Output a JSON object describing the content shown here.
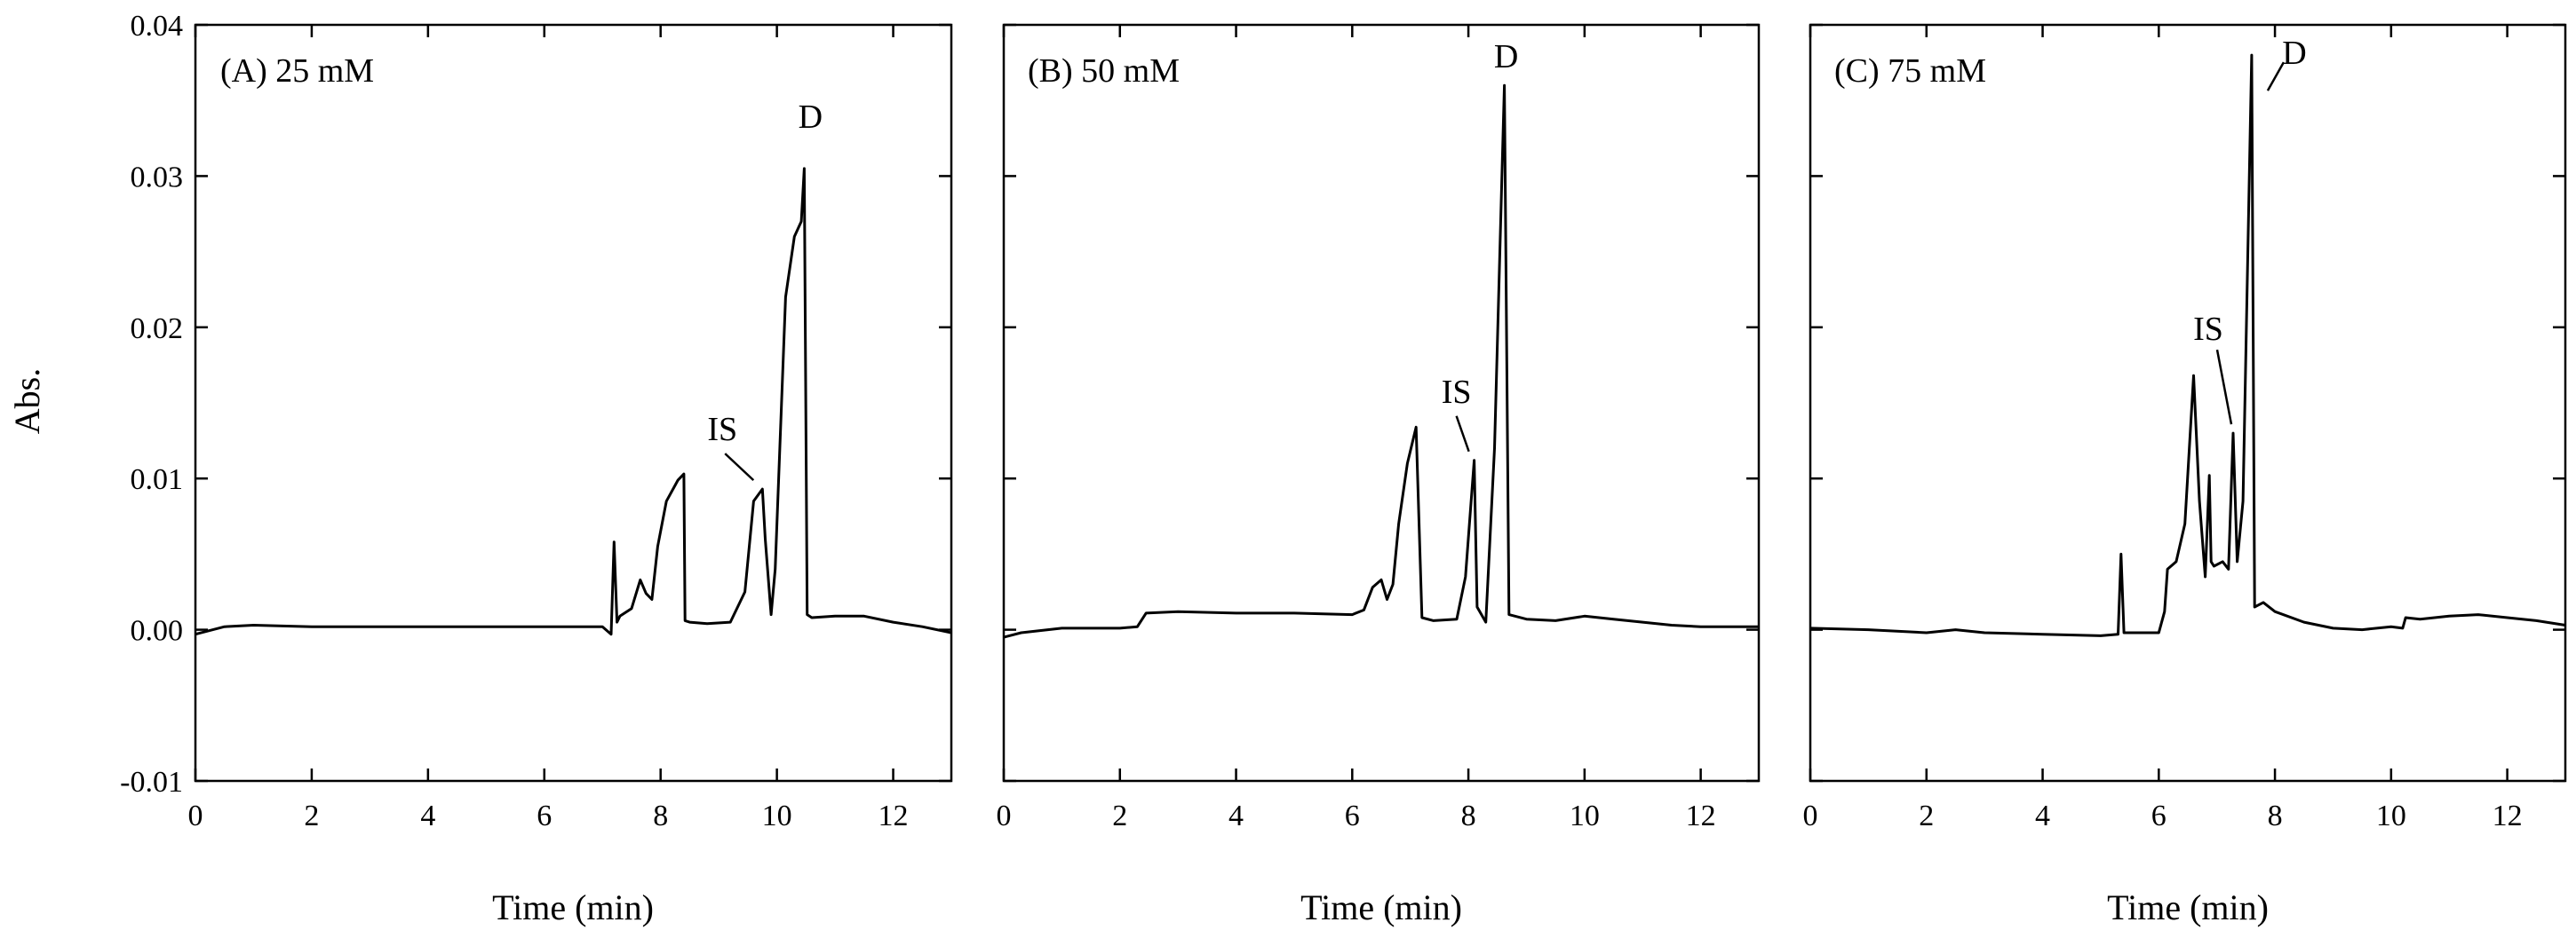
{
  "chart_data": [
    {
      "type": "line",
      "panel_label": "(A) 25 mM",
      "xlabel": "Time (min)",
      "ylabel": "Abs.",
      "xlim": [
        0,
        13
      ],
      "ylim": [
        -0.01,
        0.04
      ],
      "xticks": [
        0,
        2,
        4,
        6,
        8,
        10,
        12
      ],
      "yticks": [
        -0.01,
        0.0,
        0.01,
        0.02,
        0.03,
        0.04
      ],
      "ytick_labels": [
        "-0.01",
        "0.00",
        "0.01",
        "0.02",
        "0.03",
        "0.04"
      ],
      "series": [
        {
          "x": [
            0,
            0.5,
            1,
            2,
            3,
            4,
            5,
            6,
            7.0,
            7.15,
            7.2,
            7.25,
            7.3,
            7.5,
            7.65,
            7.75,
            7.85,
            7.95,
            8.1,
            8.3,
            8.4,
            8.42,
            8.5,
            8.8,
            9.2,
            9.45,
            9.6,
            9.75,
            9.8,
            9.9,
            9.97,
            10.05,
            10.15,
            10.3,
            10.42,
            10.47,
            10.52,
            10.6,
            11.0,
            11.5,
            12.0,
            12.5,
            13.0
          ],
          "y": [
            -0.0003,
            0.0002,
            0.0003,
            0.0002,
            0.0002,
            0.0002,
            0.0002,
            0.0002,
            0.0002,
            -0.0003,
            0.0058,
            0.0005,
            0.0009,
            0.0014,
            0.0033,
            0.0024,
            0.002,
            0.0055,
            0.0085,
            0.0099,
            0.0103,
            0.0006,
            0.0005,
            0.0004,
            0.0005,
            0.0025,
            0.0085,
            0.0093,
            0.006,
            0.001,
            0.004,
            0.012,
            0.022,
            0.026,
            0.027,
            0.0305,
            0.001,
            0.0008,
            0.0009,
            0.0009,
            0.0005,
            0.0002,
            -0.0002
          ]
        }
      ],
      "annotations": [
        {
          "text": "IS",
          "x": 9.75,
          "y": 0.0093
        },
        {
          "text": "D",
          "x": 10.47,
          "y": 0.0305
        }
      ]
    },
    {
      "type": "line",
      "panel_label": "(B) 50 mM",
      "xlabel": "Time (min)",
      "ylabel": "",
      "xlim": [
        0,
        13
      ],
      "ylim": [
        -0.01,
        0.04
      ],
      "xticks": [
        0,
        2,
        4,
        6,
        8,
        10,
        12
      ],
      "yticks": [
        -0.01,
        0.0,
        0.01,
        0.02,
        0.03,
        0.04
      ],
      "series": [
        {
          "x": [
            0,
            0.3,
            1,
            2,
            2.3,
            2.45,
            3,
            4,
            5,
            6,
            6.2,
            6.35,
            6.5,
            6.6,
            6.7,
            6.8,
            6.95,
            7.1,
            7.2,
            7.4,
            7.8,
            7.95,
            8.1,
            8.15,
            8.3,
            8.45,
            8.62,
            8.7,
            9.0,
            9.5,
            10.0,
            10.5,
            11.0,
            11.5,
            12.0,
            12.5,
            13.0
          ],
          "y": [
            -0.0005,
            -0.0002,
            0.0001,
            0.0001,
            0.0002,
            0.0011,
            0.0012,
            0.0011,
            0.0011,
            0.001,
            0.0013,
            0.0028,
            0.0033,
            0.002,
            0.003,
            0.007,
            0.011,
            0.0134,
            0.0008,
            0.0006,
            0.0007,
            0.0035,
            0.0112,
            0.0015,
            0.0005,
            0.012,
            0.036,
            0.001,
            0.0007,
            0.0006,
            0.0009,
            0.0007,
            0.0005,
            0.0003,
            0.0002,
            0.0002,
            0.0002
          ]
        }
      ],
      "annotations": [
        {
          "text": "IS",
          "x": 8.1,
          "y": 0.0112
        },
        {
          "text": "D",
          "x": 8.62,
          "y": 0.036
        }
      ]
    },
    {
      "type": "line",
      "panel_label": "(C) 75 mM",
      "xlabel": "Time (min)",
      "ylabel": "",
      "xlim": [
        0,
        13
      ],
      "ylim": [
        -0.01,
        0.04
      ],
      "xticks": [
        0,
        2,
        4,
        6,
        8,
        10,
        12
      ],
      "yticks": [
        -0.01,
        0.0,
        0.01,
        0.02,
        0.03,
        0.04
      ],
      "series": [
        {
          "x": [
            0,
            1,
            2,
            2.5,
            3,
            4,
            5,
            5.3,
            5.35,
            5.4,
            6.0,
            6.1,
            6.15,
            6.3,
            6.45,
            6.6,
            6.7,
            6.8,
            6.87,
            6.9,
            6.95,
            7.1,
            7.2,
            7.28,
            7.35,
            7.45,
            7.6,
            7.65,
            7.8,
            8.0,
            8.5,
            9.0,
            9.5,
            10.0,
            10.2,
            10.25,
            10.5,
            11.0,
            11.5,
            12.0,
            12.5,
            13.0
          ],
          "y": [
            0.0001,
            0.0,
            -0.0002,
            0.0,
            -0.0002,
            -0.0003,
            -0.0004,
            -0.0003,
            0.005,
            -0.0002,
            -0.0002,
            0.0012,
            0.004,
            0.0045,
            0.007,
            0.0168,
            0.0085,
            0.0035,
            0.0102,
            0.0045,
            0.0042,
            0.0045,
            0.004,
            0.013,
            0.0045,
            0.0085,
            0.038,
            0.0015,
            0.0018,
            0.0012,
            0.0005,
            0.0001,
            0.0,
            0.0002,
            0.0001,
            0.0008,
            0.0007,
            0.0009,
            0.001,
            0.0008,
            0.0006,
            0.0003
          ]
        }
      ],
      "annotations": [
        {
          "text": "IS",
          "x": 7.28,
          "y": 0.013
        },
        {
          "text": "D",
          "x": 7.6,
          "y": 0.038
        }
      ]
    }
  ]
}
